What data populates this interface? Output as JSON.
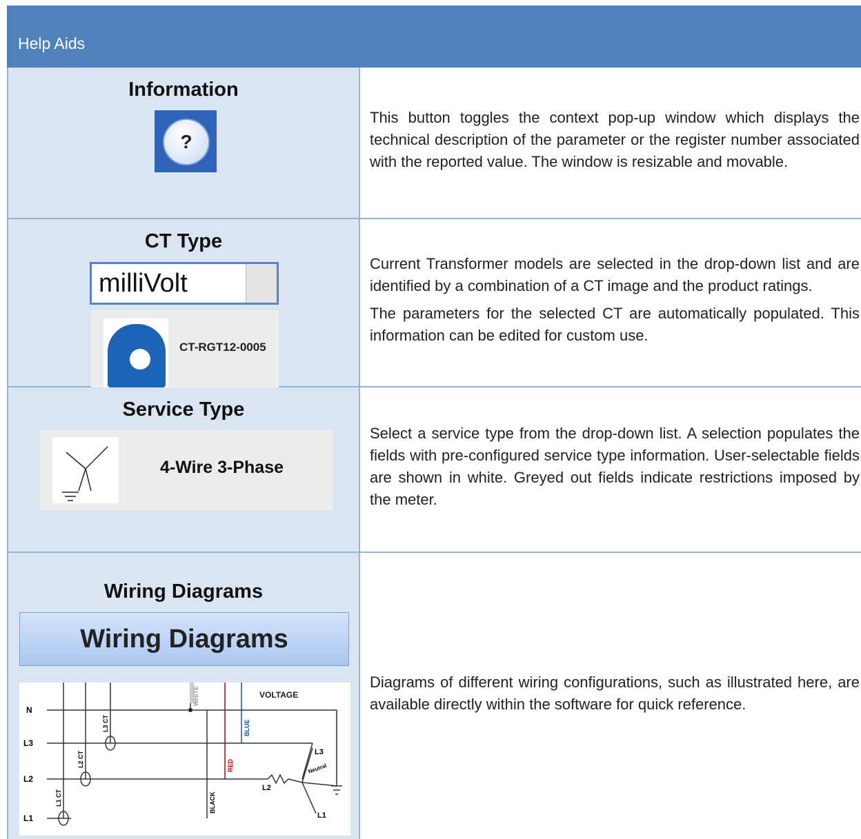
{
  "header": {
    "title": "Help Aids"
  },
  "rows": [
    {
      "heading": "Information",
      "icon_label": "?",
      "paragraphs": [
        "This button toggles the context pop-up window which displays the technical description of the parameter or the register number associated with the reported value. The window is resizable and movable."
      ]
    },
    {
      "heading": "CT Type",
      "dropdown": "milliVolt",
      "ct_label": "CT-RGT12-0005",
      "paragraphs": [
        "Current Transformer models are selected in the drop-down list and are identified by a combination of a CT image and the product ratings.",
        "The parameters for the selected CT are automatically populated. This information can be edited for custom use."
      ]
    },
    {
      "heading": "Service Type",
      "service_label": "4-Wire 3-Phase",
      "paragraphs": [
        "Select a service type from the drop-down list. A selection populates the fields with pre-configured service type information. User-selectable fields are shown in white. Greyed out fields indicate restrictions imposed by the meter."
      ]
    },
    {
      "heading": "Wiring Diagrams",
      "button": "Wiring Diagrams",
      "diagram": {
        "title": "VOLTAGE",
        "lines": [
          "N",
          "L3",
          "L2",
          "L1"
        ],
        "cts": [
          "L1 CT",
          "L2 CT",
          "L3 CT"
        ],
        "wires": [
          "WHITE",
          "RED",
          "BLUE",
          "BLACK"
        ],
        "load": [
          "L3",
          "L2",
          "L1",
          "Neutral"
        ]
      },
      "paragraphs": [
        "Diagrams of different wiring configurations, such as illustrated here, are available directly within the software for quick reference."
      ]
    }
  ]
}
